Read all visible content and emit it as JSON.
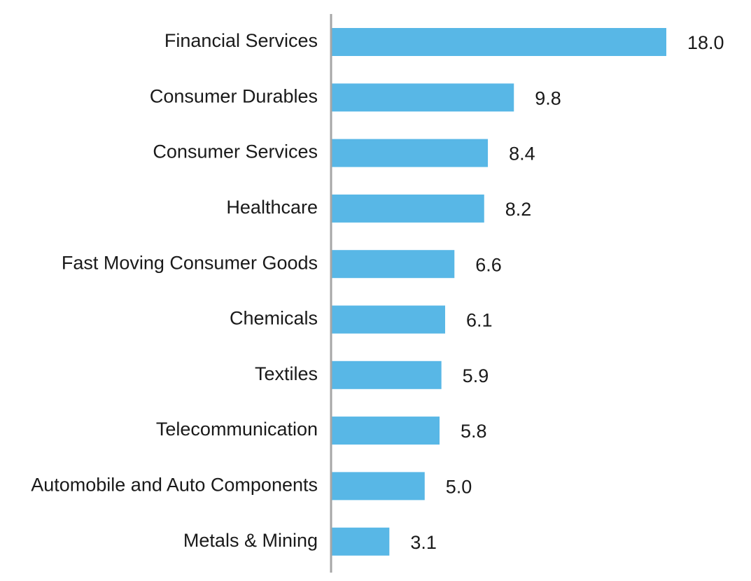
{
  "chart_data": {
    "type": "bar",
    "orientation": "horizontal",
    "categories": [
      "Financial Services",
      "Consumer Durables",
      "Consumer Services",
      "Healthcare",
      "Fast Moving Consumer Goods",
      "Chemicals",
      "Textiles",
      "Telecommunication",
      "Automobile and Auto Components",
      "Metals & Mining"
    ],
    "values": [
      18.0,
      9.8,
      8.4,
      8.2,
      6.6,
      6.1,
      5.9,
      5.8,
      5.0,
      3.1
    ],
    "value_labels": [
      "18.0",
      "9.8",
      "8.4",
      "8.2",
      "6.6",
      "6.1",
      "5.9",
      "5.8",
      "5.0",
      "3.1"
    ],
    "title": "",
    "xlabel": "",
    "ylabel": "",
    "xlim": [
      0,
      18.0
    ],
    "grid": false,
    "legend": "none",
    "colors": {
      "bar": "#58b7e6",
      "axis": "#a6a6a6",
      "text": "#1a1a1a"
    }
  }
}
